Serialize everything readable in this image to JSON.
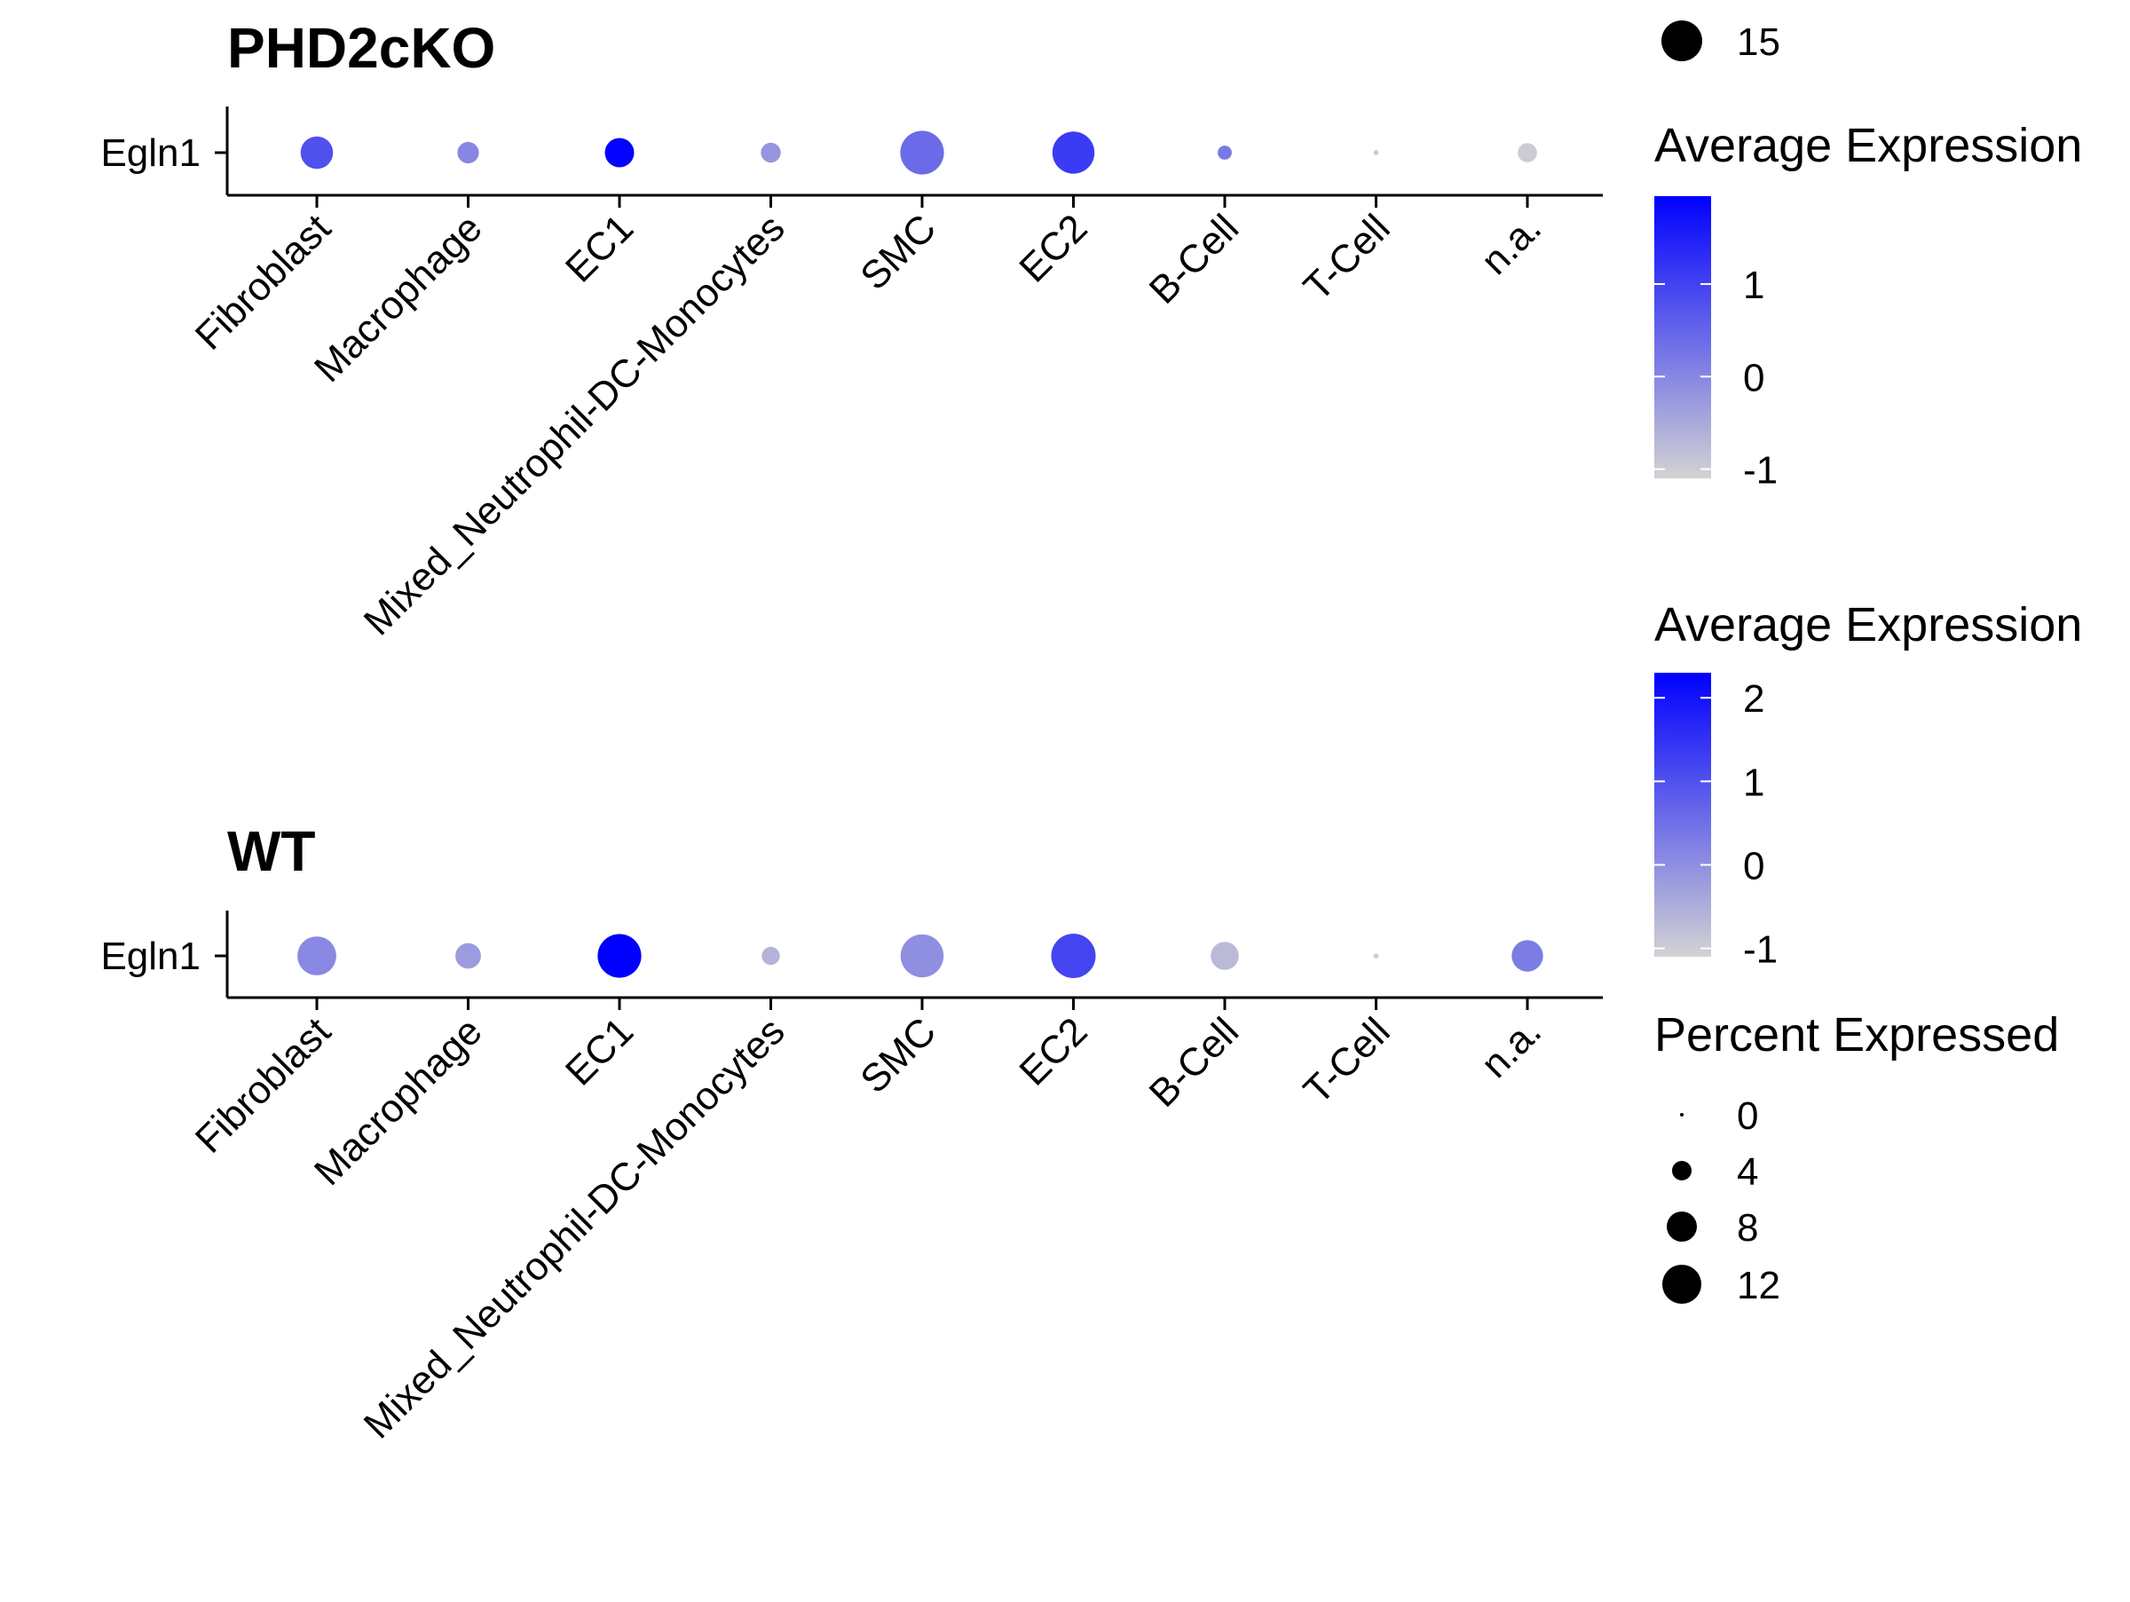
{
  "chart_data": [
    {
      "type": "dotplot",
      "title": "PHD2cKO",
      "gene": "Egln1",
      "categories": [
        "Fibroblast",
        "Macrophage",
        "EC1",
        "Mixed_Neutrophil-DC-Monocytes",
        "SMC",
        "EC2",
        "B-Cell",
        "T-Cell",
        "n.a."
      ],
      "percent_expressed": [
        8,
        3.5,
        6.5,
        3,
        14.5,
        13.5,
        1.5,
        0.2,
        2.8
      ],
      "avg_expression": [
        0.8,
        0.0,
        1.9,
        -0.2,
        0.4,
        1.1,
        0.2,
        -1.0,
        -1.0
      ],
      "color_legend": {
        "title": "Average Expression",
        "ticks": [
          -1,
          0,
          1
        ],
        "range": [
          -1.1,
          1.95
        ],
        "low_color": "#D3D3D3",
        "high_color": "#0000FF"
      }
    },
    {
      "type": "dotplot",
      "title": "WT",
      "gene": "Egln1",
      "categories": [
        "Fibroblast",
        "Macrophage",
        "EC1",
        "Mixed_Neutrophil-DC-Monocytes",
        "SMC",
        "EC2",
        "B-Cell",
        "T-Cell",
        "n.a."
      ],
      "percent_expressed": [
        11.5,
        5,
        14.5,
        2.5,
        14,
        15,
        6,
        0.2,
        7.5
      ],
      "avg_expression": [
        0.1,
        -0.2,
        2.3,
        -0.6,
        0.0,
        1.2,
        -0.7,
        -1.0,
        0.3
      ],
      "color_legend": {
        "title": "Average Expression",
        "ticks": [
          -1,
          0,
          1,
          2
        ],
        "range": [
          -1.1,
          2.3
        ],
        "low_color": "#D3D3D3",
        "high_color": "#0000FF"
      }
    }
  ],
  "size_legend": {
    "title": "Percent Expressed",
    "labels": [
      "0",
      "4",
      "8",
      "12",
      "15"
    ],
    "values": [
      0,
      4,
      8,
      12,
      15
    ]
  }
}
